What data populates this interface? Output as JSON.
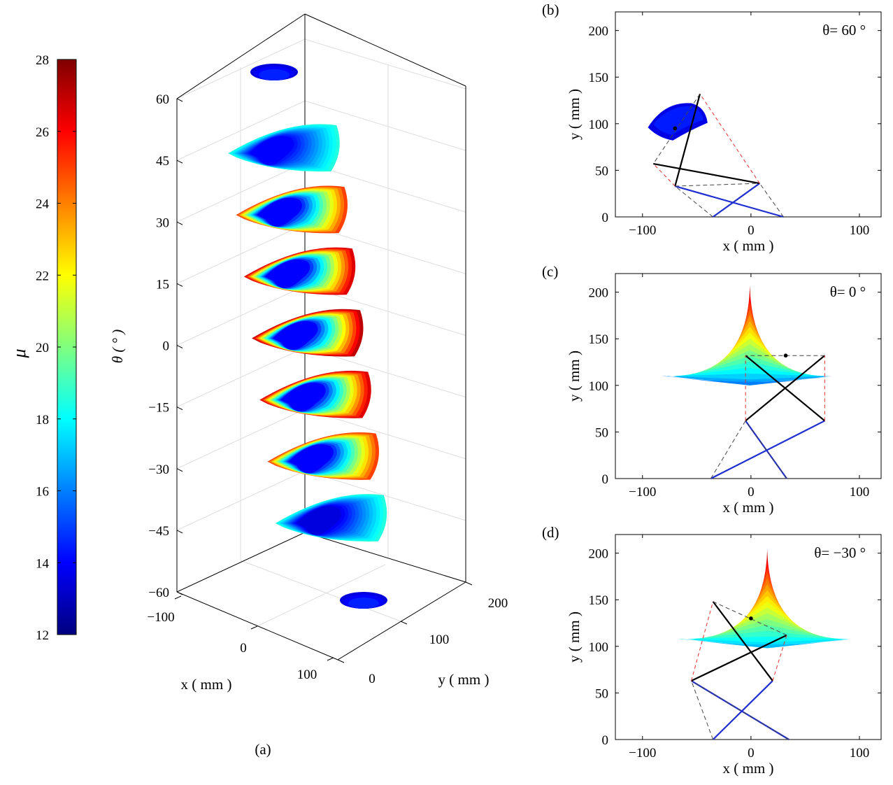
{
  "figure": {
    "panel_labels": {
      "a": "(a)",
      "b": "(b)",
      "c": "(c)",
      "d": "(d)"
    }
  },
  "colorbar": {
    "label": "μ",
    "min": 12,
    "max": 28,
    "ticks": [
      "12",
      "14",
      "16",
      "18",
      "20",
      "22",
      "24",
      "26",
      "28"
    ],
    "colormap": "jet"
  },
  "chart_data": [
    {
      "id": "a",
      "type": "scatter3d",
      "title": "(a)",
      "xlabel": "x ( mm )",
      "ylabel": "y ( mm )",
      "zlabel": "θ ( ° )",
      "xlim": [
        -100,
        100
      ],
      "ylim": [
        0,
        200
      ],
      "zlim": [
        -60,
        60
      ],
      "xticks": [
        "−100",
        "0",
        "100"
      ],
      "yticks": [
        "0",
        "100",
        "200"
      ],
      "zticks": [
        "60",
        "45",
        "30",
        "15",
        "0",
        "−15",
        "−30",
        "−45",
        "−60"
      ],
      "grid": true,
      "slices": [
        {
          "theta": 60,
          "mu_min": 13.5,
          "mu_max": 14.5,
          "size": "small"
        },
        {
          "theta": 45,
          "mu_min": 14,
          "mu_max": 18.5,
          "size": "large"
        },
        {
          "theta": 30,
          "mu_min": 14,
          "mu_max": 25,
          "size": "large"
        },
        {
          "theta": 15,
          "mu_min": 14,
          "mu_max": 26.5,
          "size": "large"
        },
        {
          "theta": 0,
          "mu_min": 14,
          "mu_max": 27,
          "size": "large"
        },
        {
          "theta": -15,
          "mu_min": 14,
          "mu_max": 26.5,
          "size": "large"
        },
        {
          "theta": -30,
          "mu_min": 14,
          "mu_max": 25,
          "size": "large"
        },
        {
          "theta": -45,
          "mu_min": 13.5,
          "mu_max": 18.5,
          "size": "large"
        },
        {
          "theta": -60,
          "mu_min": 13.5,
          "mu_max": 14.5,
          "size": "small"
        }
      ]
    },
    {
      "id": "b",
      "type": "scatter",
      "title": "(b)",
      "annotation": "θ= 60 °",
      "xlabel": "x ( mm )",
      "ylabel": "y ( mm )",
      "xlim": [
        -125,
        120
      ],
      "ylim": [
        0,
        220
      ],
      "xticks": [
        "−100",
        "0",
        "100"
      ],
      "yticks": [
        "0",
        "50",
        "100",
        "150",
        "200"
      ],
      "workspace": {
        "mu_min": 13.5,
        "mu_max": 15,
        "x_range": [
          -95,
          -40
        ],
        "y_range": [
          82,
          122
        ]
      },
      "mechanism": {
        "base": [
          [
            -35,
            0
          ],
          [
            30,
            0
          ]
        ],
        "blue_links": [
          [
            [
              -70,
              33
            ],
            [
              30,
              0
            ]
          ],
          [
            [
              -35,
              0
            ],
            [
              8,
              36
            ]
          ]
        ],
        "black_links": [
          [
            [
              -70,
              33
            ],
            [
              -47,
              132
            ]
          ],
          [
            [
              -90,
              57
            ],
            [
              8,
              36
            ]
          ]
        ],
        "moving_point": [
          -70,
          95
        ]
      }
    },
    {
      "id": "c",
      "type": "scatter",
      "title": "(c)",
      "annotation": "θ= 0 °",
      "xlabel": "x ( mm )",
      "ylabel": "y ( mm )",
      "xlim": [
        -125,
        120
      ],
      "ylim": [
        0,
        220
      ],
      "xticks": [
        "−100",
        "0",
        "100"
      ],
      "yticks": [
        "0",
        "50",
        "100",
        "150",
        "200"
      ],
      "workspace": {
        "mu_min": 16,
        "mu_max": 27,
        "x_range": [
          -80,
          78
        ],
        "y_range": [
          100,
          207
        ]
      },
      "mechanism": {
        "base": [
          [
            -37,
            0
          ],
          [
            33,
            0
          ]
        ],
        "blue_links": [
          [
            [
              -37,
              0
            ],
            [
              68,
              62
            ]
          ],
          [
            [
              33,
              0
            ],
            [
              -5,
              62
            ]
          ]
        ],
        "black_links": [
          [
            [
              -5,
              62
            ],
            [
              68,
              132
            ]
          ],
          [
            [
              -5,
              132
            ],
            [
              68,
              62
            ]
          ]
        ],
        "moving_point": [
          32,
          132
        ]
      }
    },
    {
      "id": "d",
      "type": "scatter",
      "title": "(d)",
      "annotation": "θ= −30 °",
      "xlabel": "x ( mm )",
      "ylabel": "y ( mm )",
      "xlim": [
        -125,
        120
      ],
      "ylim": [
        0,
        220
      ],
      "xticks": [
        "−100",
        "0",
        "100"
      ],
      "yticks": [
        "0",
        "50",
        "100",
        "150",
        "200"
      ],
      "workspace": {
        "mu_min": 17,
        "mu_max": 27,
        "x_range": [
          -65,
          95
        ],
        "y_range": [
          98,
          204
        ]
      },
      "mechanism": {
        "base": [
          [
            -35,
            0
          ],
          [
            35,
            0
          ]
        ],
        "blue_links": [
          [
            [
              -35,
              0
            ],
            [
              20,
              63
            ]
          ],
          [
            [
              35,
              0
            ],
            [
              -55,
              63
            ]
          ]
        ],
        "black_links": [
          [
            [
              -55,
              63
            ],
            [
              33,
              112
            ]
          ],
          [
            [
              -35,
              148
            ],
            [
              20,
              63
            ]
          ]
        ],
        "moving_point": [
          0,
          130
        ]
      }
    }
  ]
}
